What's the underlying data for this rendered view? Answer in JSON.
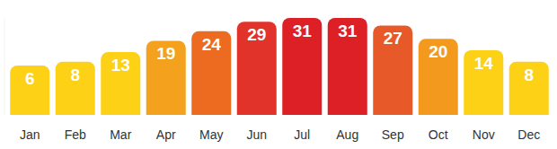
{
  "chart_data": {
    "type": "bar",
    "categories": [
      "Jan",
      "Feb",
      "Mar",
      "Apr",
      "May",
      "Jun",
      "Jul",
      "Aug",
      "Sep",
      "Oct",
      "Nov",
      "Dec"
    ],
    "values": [
      6,
      8,
      13,
      19,
      24,
      29,
      31,
      31,
      27,
      20,
      14,
      8
    ],
    "colors": [
      "#fcd116",
      "#fcd116",
      "#fcd116",
      "#f4a11d",
      "#ec6b21",
      "#e2332a",
      "#dd1f26",
      "#dd1f26",
      "#e8592a",
      "#f39a1e",
      "#fcd116",
      "#fcd116"
    ],
    "ylim": [
      -20,
      31
    ],
    "yticks": [],
    "grid": false,
    "data_labels": true,
    "tick_labels": "x"
  }
}
